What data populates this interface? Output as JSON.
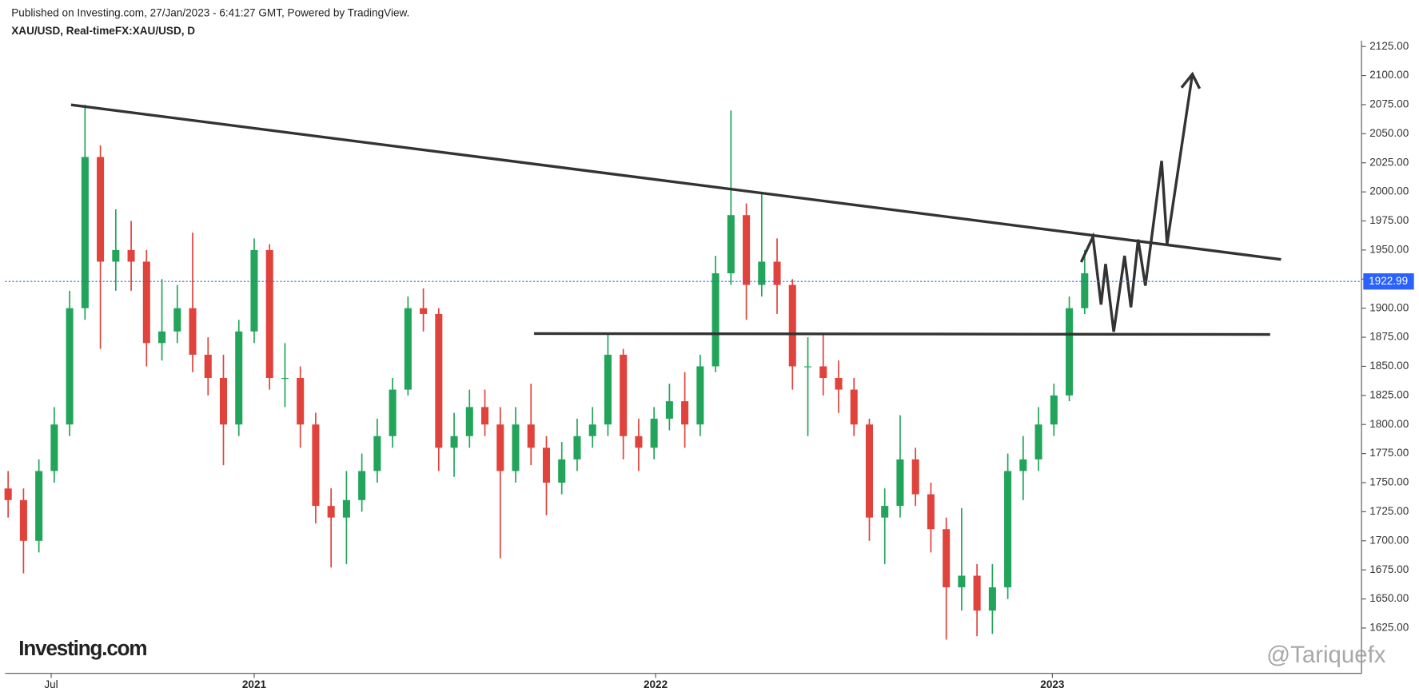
{
  "chart_data": {
    "type": "candlestick",
    "subtitle": "Published on Investing.com, 27/Jan/2023 - 6:41:27 GMT, Powered by TradingView.",
    "title": "XAU/USD, Real-timeFX:XAU/USD, D",
    "logo": "Investing.com",
    "watermark": "@Tariquefx",
    "up_color": "#22a55b",
    "down_color": "#e0433c",
    "open": [
      1745,
      1735,
      1700,
      1760,
      1800,
      1900,
      2030,
      1940,
      1950,
      1940,
      1870,
      1880,
      1900,
      1860,
      1840,
      1800,
      1880,
      1950,
      1840,
      1840,
      1800,
      1730,
      1720,
      1735,
      1760,
      1790,
      1830,
      1900,
      1895,
      1780,
      1790,
      1815,
      1800,
      1760,
      1800,
      1780,
      1750,
      1770,
      1790,
      1800,
      1860,
      1790,
      1780,
      1805,
      1820,
      1800,
      1850,
      1930,
      1980,
      1920,
      1940,
      1920,
      1850,
      1850,
      1840,
      1830,
      1800,
      1720,
      1730,
      1770,
      1740,
      1710,
      1660,
      1670,
      1640,
      1660,
      1760,
      1770,
      1800,
      1825,
      1900
    ],
    "high": [
      1760,
      1745,
      1770,
      1815,
      1915,
      2075,
      2040,
      1985,
      1975,
      1950,
      1925,
      1920,
      1965,
      1875,
      1860,
      1890,
      1960,
      1955,
      1870,
      1850,
      1810,
      1745,
      1760,
      1775,
      1805,
      1840,
      1910,
      1917,
      1900,
      1810,
      1830,
      1830,
      1815,
      1815,
      1835,
      1790,
      1785,
      1805,
      1815,
      1877,
      1865,
      1805,
      1815,
      1835,
      1845,
      1860,
      1945,
      2070,
      1990,
      2000,
      1960,
      1925,
      1875,
      1878,
      1855,
      1840,
      1805,
      1745,
      1808,
      1780,
      1750,
      1720,
      1728,
      1680,
      1680,
      1775,
      1790,
      1815,
      1835,
      1910,
      1950
    ],
    "low": [
      1720,
      1672,
      1690,
      1750,
      1790,
      1890,
      1865,
      1915,
      1915,
      1850,
      1855,
      1870,
      1845,
      1825,
      1765,
      1790,
      1870,
      1830,
      1815,
      1780,
      1715,
      1677,
      1680,
      1725,
      1750,
      1780,
      1825,
      1880,
      1760,
      1755,
      1780,
      1790,
      1685,
      1750,
      1765,
      1722,
      1740,
      1760,
      1780,
      1790,
      1770,
      1760,
      1770,
      1795,
      1780,
      1790,
      1845,
      1920,
      1890,
      1910,
      1895,
      1830,
      1790,
      1825,
      1810,
      1790,
      1700,
      1680,
      1720,
      1730,
      1690,
      1615,
      1640,
      1618,
      1620,
      1650,
      1735,
      1760,
      1790,
      1820,
      1895
    ],
    "close": [
      1735,
      1700,
      1760,
      1800,
      1900,
      2030,
      1940,
      1950,
      1940,
      1870,
      1880,
      1900,
      1860,
      1840,
      1800,
      1880,
      1950,
      1840,
      1840,
      1800,
      1730,
      1720,
      1735,
      1760,
      1790,
      1830,
      1900,
      1895,
      1780,
      1790,
      1815,
      1800,
      1760,
      1800,
      1780,
      1750,
      1770,
      1790,
      1800,
      1860,
      1790,
      1780,
      1805,
      1820,
      1800,
      1850,
      1930,
      1980,
      1920,
      1940,
      1920,
      1850,
      1850,
      1840,
      1830,
      1800,
      1720,
      1730,
      1770,
      1740,
      1710,
      1660,
      1670,
      1640,
      1660,
      1760,
      1770,
      1800,
      1825,
      1900,
      1930
    ],
    "last_price": 1922.99,
    "last_price_color": "#2962ff",
    "xlim": [
      -0.2,
      88
    ],
    "xticks": [
      {
        "value": 2.8,
        "label": "Jul"
      },
      {
        "value": 16,
        "label": "2021"
      },
      {
        "value": 42.1,
        "label": "2022"
      },
      {
        "value": 67.9,
        "label": "2023"
      }
    ],
    "ylim": [
      1586,
      2130
    ],
    "yticks": [
      {
        "value": 1625,
        "label": "1625.00"
      },
      {
        "value": 1650,
        "label": "1650.00"
      },
      {
        "value": 1675,
        "label": "1675.00"
      },
      {
        "value": 1700,
        "label": "1700.00"
      },
      {
        "value": 1725,
        "label": "1725.00"
      },
      {
        "value": 1750,
        "label": "1750.00"
      },
      {
        "value": 1775,
        "label": "1775.00"
      },
      {
        "value": 1800,
        "label": "1800.00"
      },
      {
        "value": 1825,
        "label": "1825.00"
      },
      {
        "value": 1850,
        "label": "1850.00"
      },
      {
        "value": 1875,
        "label": "1875.00"
      },
      {
        "value": 1900,
        "label": "1900.00"
      },
      {
        "value": 1925,
        "label": "1925.00"
      },
      {
        "value": 1950,
        "label": "1950.00"
      },
      {
        "value": 1975,
        "label": "1975.00"
      },
      {
        "value": 2000,
        "label": "2000.00"
      },
      {
        "value": 2025,
        "label": "2025.00"
      },
      {
        "value": 2050,
        "label": "2050.00"
      },
      {
        "value": 2075,
        "label": "2075.00"
      },
      {
        "value": 2100,
        "label": "2100.00"
      },
      {
        "value": 2125,
        "label": "2125.00"
      }
    ]
  }
}
